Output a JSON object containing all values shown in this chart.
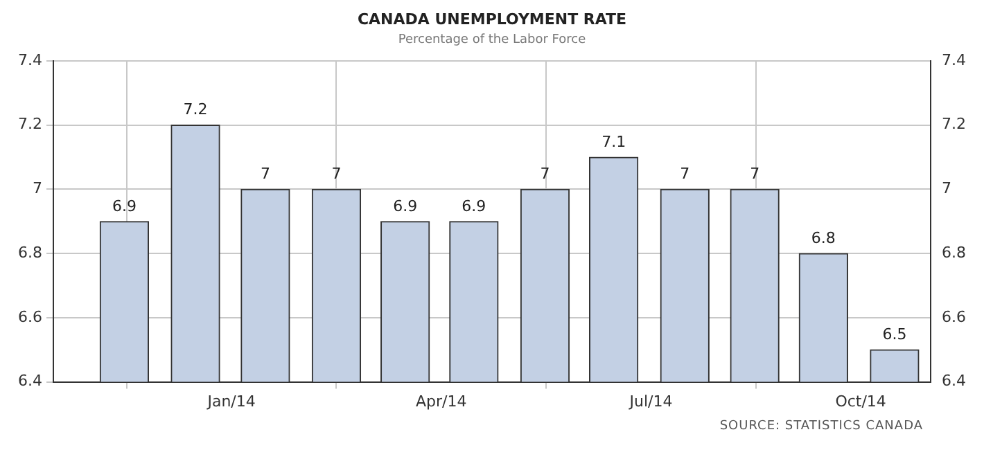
{
  "chart_data": {
    "type": "bar",
    "title": "CANADA UNEMPLOYMENT RATE",
    "subtitle": "Percentage of the Labor Force",
    "x": [
      "2013-11-15",
      "2013-12-16",
      "2014-01-16",
      "2014-02-15",
      "2014-03-16",
      "2014-04-15",
      "2014-05-16",
      "2014-06-15",
      "2014-07-16",
      "2014-08-16",
      "2014-09-15",
      "2014-10-16"
    ],
    "values": [
      6.9,
      7.2,
      7,
      7,
      6.9,
      6.9,
      7,
      7.1,
      7,
      7,
      6.8,
      6.5
    ],
    "color": "#c3d0e4",
    "xlim": [
      "2013-10-15",
      "2014-11-01"
    ],
    "xticks": [
      {
        "value": "2014-01-01",
        "label": "Jan/14"
      },
      {
        "value": "2014-04-01",
        "label": "Apr/14"
      },
      {
        "value": "2014-07-01",
        "label": "Jul/14"
      },
      {
        "value": "2014-10-01",
        "label": "Oct/14"
      }
    ],
    "ylim": [
      6.4,
      7.4
    ],
    "yticks": [
      6.4,
      6.6,
      6.8,
      7,
      7.2,
      7.4
    ],
    "y2lim": [
      6.4,
      7.4
    ],
    "y2ticks": [
      6.4,
      6.6,
      6.8,
      7,
      7.2,
      7.4
    ],
    "grid": true,
    "data_labels": true,
    "annotations": [
      "SOURCE: STATISTICS CANADA"
    ]
  }
}
